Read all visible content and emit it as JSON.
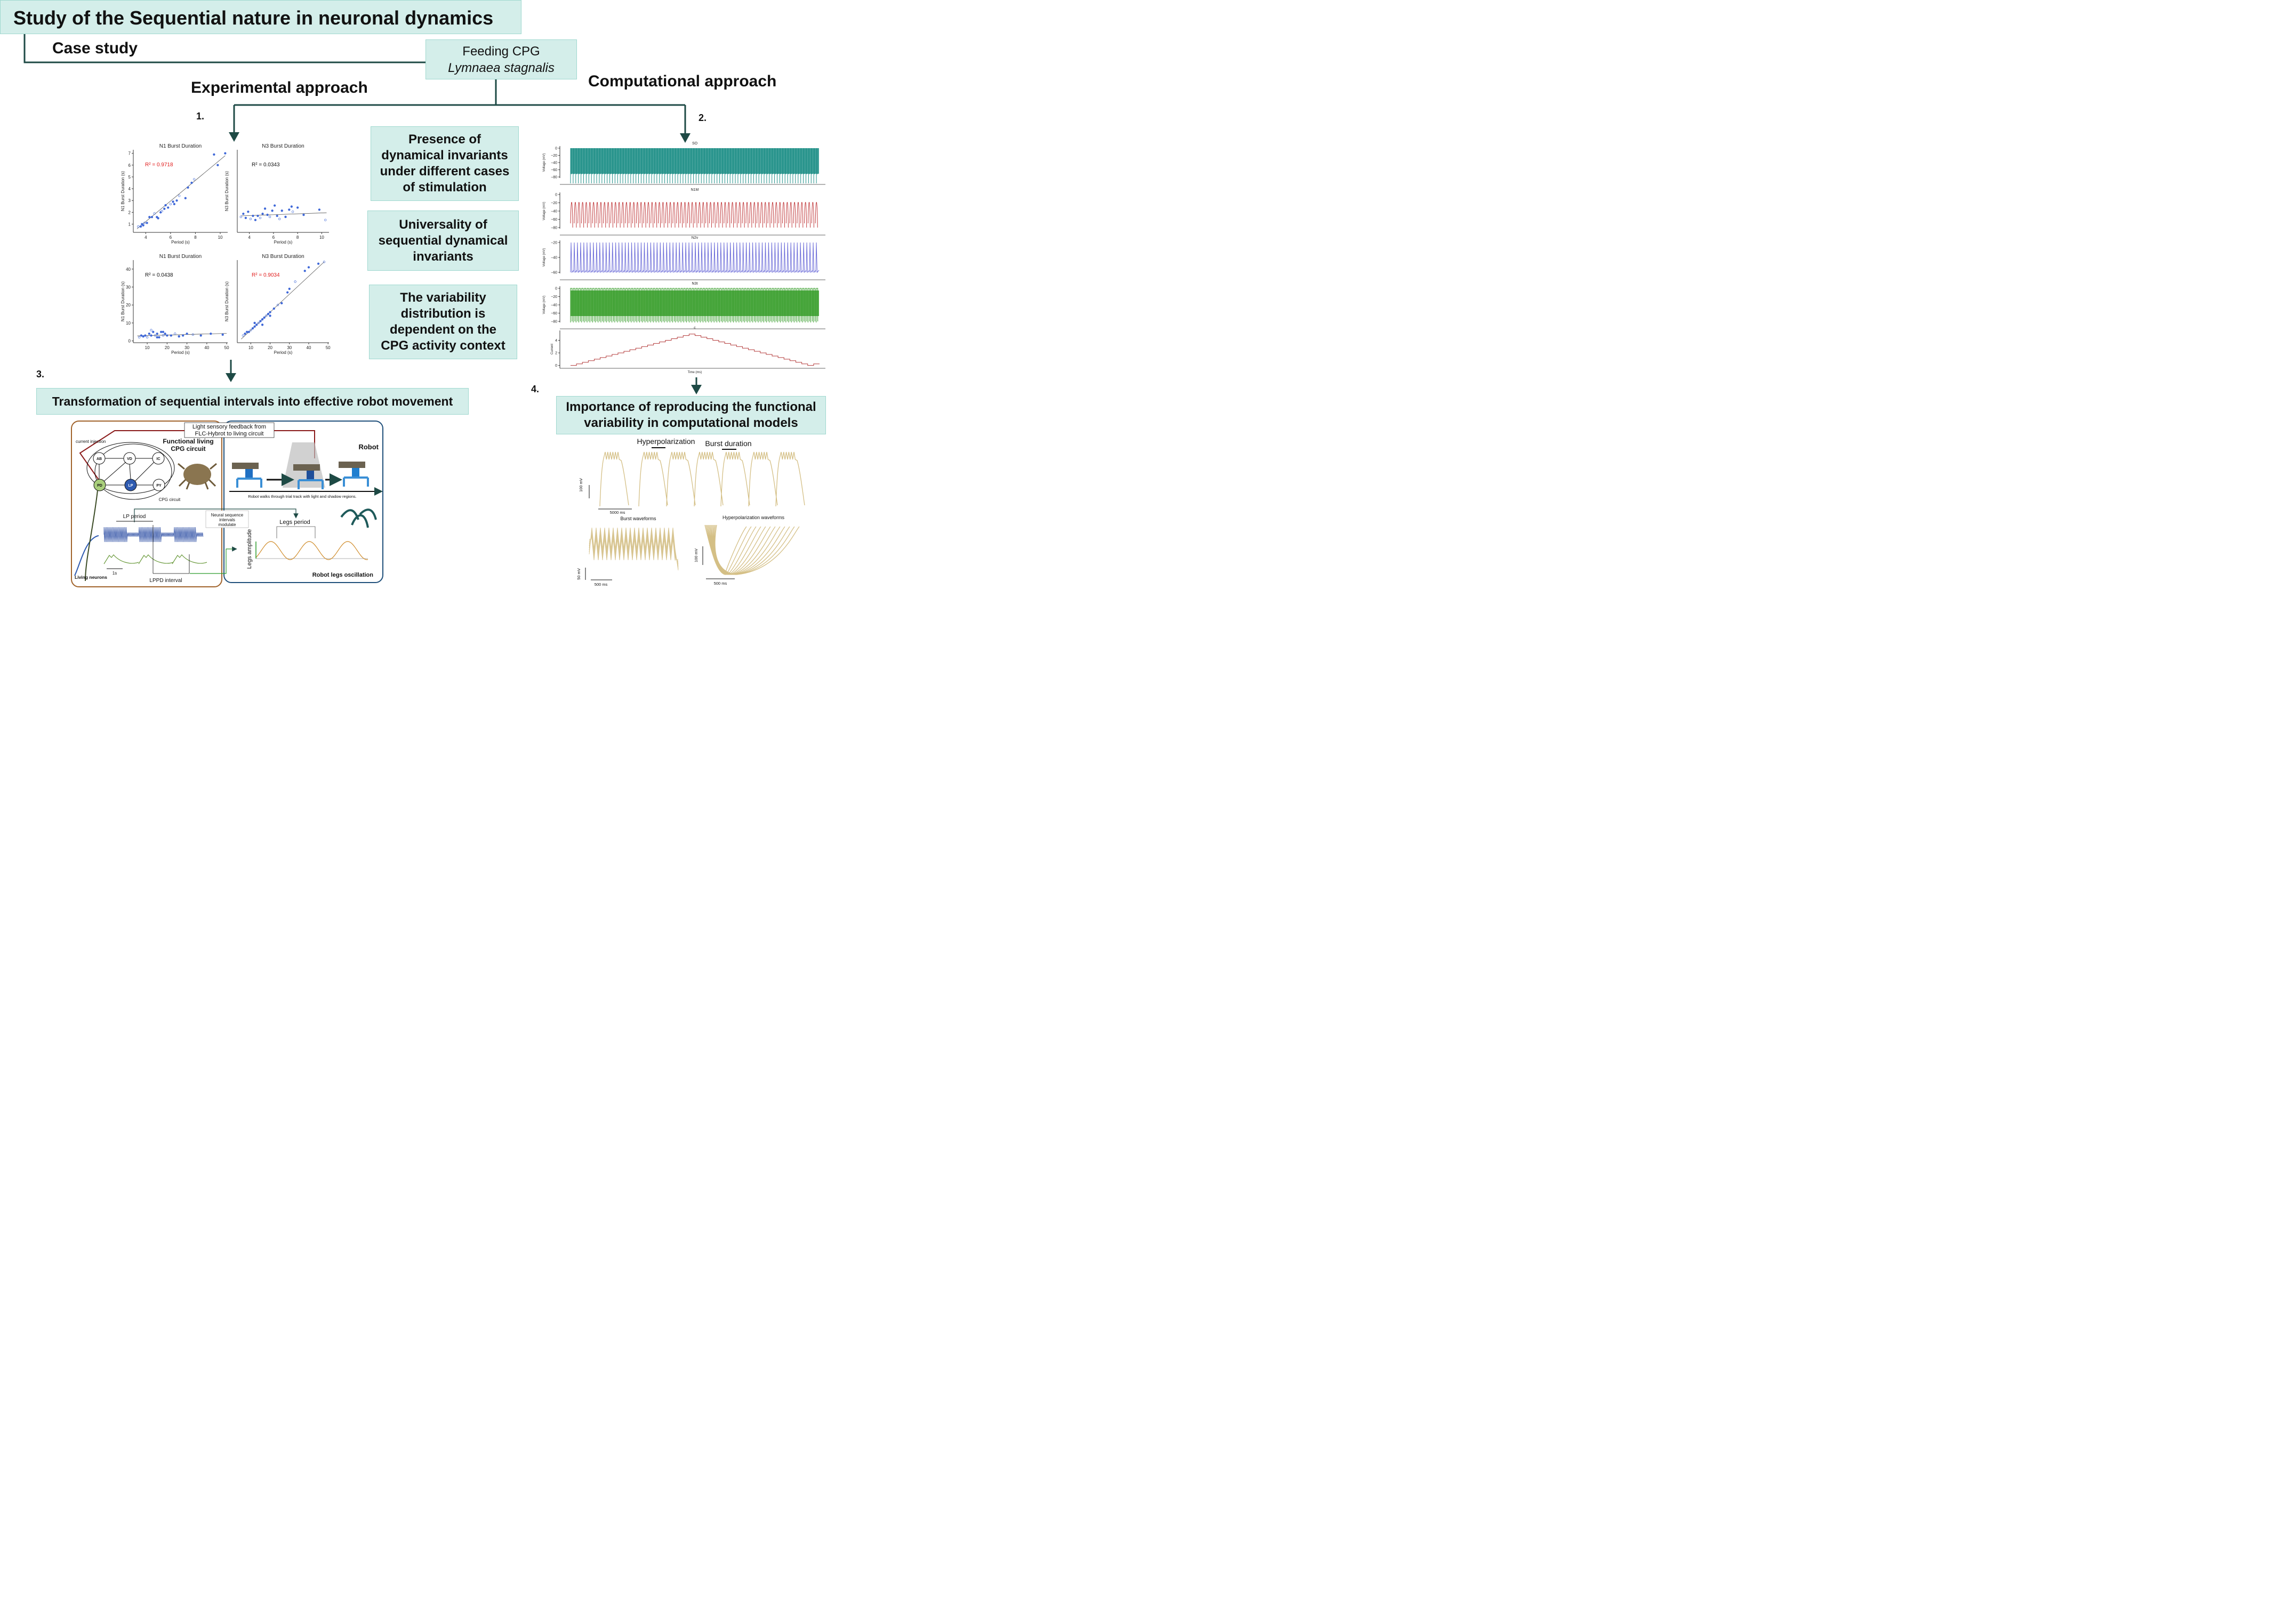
{
  "title": "Study of the Sequential nature in neuronal dynamics",
  "case_study": "Case study",
  "feeding_box": {
    "line1": "Feeding CPG",
    "line2": "Lymnaea stagnalis"
  },
  "experimental_header": "Experimental approach",
  "computational_header": "Computational approach",
  "steps": {
    "s1": "1.",
    "s2": "2.",
    "s3": "3.",
    "s4": "4."
  },
  "middle_boxes": [
    {
      "text": "Presence of dynamical invariants under different cases of stimulation"
    },
    {
      "text": "Universality of sequential dynamical invariants"
    },
    {
      "text": "The variability distribution is dependent on the CPG activity context"
    }
  ],
  "step3_box": "Transformation of sequential intervals into effective robot movement",
  "step4_box": "Importance of reproducing the  functional variability in computational models",
  "chart_data": [
    {
      "type": "scatter",
      "title": "N1 Burst Duration",
      "xlabel": "Period (s)",
      "ylabel": "N1 Burst Duration (s)",
      "annotation": "R² = 0.9718",
      "annotation_color": "#e11d1d",
      "xlim": [
        3,
        10.6
      ],
      "ylim": [
        0.3,
        7.3
      ],
      "xticks": [
        4,
        6,
        8,
        10
      ],
      "yticks": [
        1,
        2,
        3,
        4,
        5,
        6,
        7
      ],
      "points": [
        [
          3.4,
          0.8
        ],
        [
          3.6,
          0.8
        ],
        [
          3.7,
          1
        ],
        [
          3.8,
          0.9
        ],
        [
          3.9,
          1.1
        ],
        [
          4.1,
          1.1
        ],
        [
          4.3,
          1.6
        ],
        [
          4.5,
          1.6
        ],
        [
          4.7,
          1.9
        ],
        [
          4.9,
          1.6
        ],
        [
          5,
          1.5
        ],
        [
          5.2,
          2
        ],
        [
          5.3,
          2.1
        ],
        [
          5.5,
          2.3
        ],
        [
          5.6,
          2.6
        ],
        [
          5.8,
          2.4
        ],
        [
          6,
          2.7
        ],
        [
          6.2,
          2.9
        ],
        [
          6.3,
          2.7
        ],
        [
          6.5,
          3
        ],
        [
          6.7,
          3.4
        ],
        [
          7.2,
          3.2
        ],
        [
          7.4,
          4.1
        ],
        [
          7.7,
          4.5
        ],
        [
          7.9,
          4.8
        ],
        [
          9.5,
          6.9
        ],
        [
          9.8,
          6
        ],
        [
          10.4,
          7
        ]
      ],
      "fit": [
        [
          3.3,
          0.6
        ],
        [
          10.4,
          6.8
        ]
      ]
    },
    {
      "type": "scatter",
      "title": "N3 Burst Duration",
      "xlabel": "Period (s)",
      "ylabel": "N3 Burst Duration (s)",
      "annotation": "R² = 0.0343",
      "annotation_color": "#111111",
      "xlim": [
        3,
        10.6
      ],
      "ylim": [
        0,
        8
      ],
      "xticks": [
        4,
        6,
        8,
        10
      ],
      "yticks": [],
      "points": [
        [
          3.3,
          1.5
        ],
        [
          3.5,
          1.8
        ],
        [
          3.7,
          1.4
        ],
        [
          3.9,
          2
        ],
        [
          4.1,
          1.3
        ],
        [
          4.3,
          1.6
        ],
        [
          4.5,
          1.2
        ],
        [
          4.7,
          1.6
        ],
        [
          4.9,
          1.4
        ],
        [
          5.1,
          1.8
        ],
        [
          5.3,
          2.3
        ],
        [
          5.5,
          1.7
        ],
        [
          5.7,
          1.5
        ],
        [
          5.9,
          2.1
        ],
        [
          6.1,
          2.6
        ],
        [
          6.3,
          1.6
        ],
        [
          6.5,
          1.3
        ],
        [
          6.7,
          2.1
        ],
        [
          7,
          1.5
        ],
        [
          7.3,
          2.2
        ],
        [
          7.6,
          2
        ],
        [
          8,
          2.4
        ],
        [
          8.5,
          1.7
        ],
        [
          9.8,
          2.2
        ],
        [
          10.3,
          1.2
        ],
        [
          7.5,
          2.5
        ]
      ],
      "fit": [
        [
          3.3,
          1.6
        ],
        [
          10.4,
          1.9
        ]
      ]
    },
    {
      "type": "scatter",
      "title": "N1 Burst Duration",
      "xlabel": "Period (s)",
      "ylabel": "N1 Burst Duration (s)",
      "annotation": "R² = 0.0438",
      "annotation_color": "#111111",
      "xlim": [
        3,
        50.5
      ],
      "ylim": [
        -1,
        45
      ],
      "xticks": [
        10,
        20,
        30,
        40,
        50
      ],
      "yticks": [
        0,
        10,
        20,
        30,
        40
      ],
      "points": [
        [
          6,
          2
        ],
        [
          7,
          3
        ],
        [
          8,
          2.5
        ],
        [
          9,
          3
        ],
        [
          10,
          2
        ],
        [
          11,
          4
        ],
        [
          12,
          3
        ],
        [
          13,
          5
        ],
        [
          14,
          3
        ],
        [
          15,
          4
        ],
        [
          16,
          2
        ],
        [
          17,
          5
        ],
        [
          18,
          3
        ],
        [
          19,
          4
        ],
        [
          20,
          3
        ],
        [
          22,
          3
        ],
        [
          24,
          4
        ],
        [
          26,
          2.5
        ],
        [
          28,
          3
        ],
        [
          30,
          4
        ],
        [
          33,
          3.5
        ],
        [
          37,
          3
        ],
        [
          42,
          4
        ],
        [
          48,
          3.5
        ],
        [
          12,
          6
        ],
        [
          15,
          2
        ],
        [
          18,
          5
        ]
      ],
      "fit": [
        [
          5,
          2.8
        ],
        [
          50,
          4.2
        ]
      ]
    },
    {
      "type": "scatter",
      "title": "N3 Burst Duration",
      "xlabel": "Period (s)",
      "ylabel": "N3 Burst Duration (s)",
      "annotation": "R² = 0.9034",
      "annotation_color": "#e11d1d",
      "xlim": [
        3,
        50.5
      ],
      "ylim": [
        -1,
        45
      ],
      "xticks": [
        10,
        20,
        30,
        40,
        50
      ],
      "yticks": [],
      "points": [
        [
          6,
          3
        ],
        [
          7,
          4
        ],
        [
          8,
          5
        ],
        [
          9,
          5
        ],
        [
          10,
          6
        ],
        [
          11,
          7
        ],
        [
          12,
          8
        ],
        [
          13,
          9
        ],
        [
          14,
          10
        ],
        [
          15,
          11
        ],
        [
          16,
          12
        ],
        [
          17,
          13
        ],
        [
          18,
          14
        ],
        [
          19,
          15
        ],
        [
          20,
          16
        ],
        [
          22,
          18
        ],
        [
          24,
          20
        ],
        [
          26,
          21
        ],
        [
          29,
          27
        ],
        [
          30,
          29
        ],
        [
          33,
          33
        ],
        [
          38,
          39
        ],
        [
          40,
          41
        ],
        [
          45,
          43
        ],
        [
          48,
          44
        ],
        [
          12,
          10
        ],
        [
          16,
          9
        ],
        [
          20,
          14
        ]
      ],
      "fit": [
        [
          5,
          1
        ],
        [
          48,
          44
        ]
      ]
    },
    {
      "type": "line",
      "title": "c",
      "xlabel": "Time (ms)",
      "ylabel": "Current",
      "yticks": [
        0,
        2,
        4
      ],
      "ylim": [
        -0.2,
        5.4
      ],
      "steps": [
        0,
        0.25,
        0.5,
        0.75,
        1,
        1.25,
        1.5,
        1.75,
        2,
        2.25,
        2.5,
        2.75,
        3,
        3.25,
        3.5,
        3.75,
        4,
        4.25,
        4.5,
        4.75,
        5,
        4.75,
        4.5,
        4.25,
        4,
        3.75,
        3.5,
        3.25,
        3,
        2.75,
        2.5,
        2.25,
        2,
        1.75,
        1.5,
        1.25,
        1,
        0.75,
        0.5,
        0.25,
        0,
        0.25
      ]
    }
  ],
  "traces": [
    {
      "title": "SO",
      "ylabel": "Voltage (mV)",
      "yticks": [
        "0",
        "−20",
        "−40",
        "−60",
        "−80"
      ],
      "color": "#1e8f87"
    },
    {
      "title": "N1M",
      "ylabel": "Voltage (mV)",
      "yticks": [
        "0",
        "−20",
        "−40",
        "−60",
        "−80"
      ],
      "color": "#c0393b"
    },
    {
      "title": "N2v",
      "ylabel": "Voltage (mV)",
      "yticks": [
        "−20",
        "−40",
        "−60"
      ],
      "color": "#6a6ad8"
    },
    {
      "title": "N3t",
      "ylabel": "Voltage (mV)",
      "yticks": [
        "0",
        "−20",
        "−40",
        "−60",
        "−80"
      ],
      "color": "#2f9a22"
    }
  ],
  "robot_panel": {
    "feedback_label": "Light sensory feedback from FLC-Hybrot to living circuit",
    "current_injection": "current injection",
    "functional_circuit": "Functional living CPG circuit",
    "cpg_circuit": "CPG circuit",
    "robot": "Robot",
    "robot_caption": "Robot walks through trial track with light and shadow regions.",
    "neural_seq": "Neural sequence intervals modulate",
    "lp_period": "LP period",
    "legs_period": "Legs period",
    "legs_amplitude": "Legs amplitude",
    "scale_1s": "1s",
    "living_neurons": "Living neurons",
    "lppd_interval": "LPPD interval",
    "robot_legs": "Robot legs oscillation",
    "nodes": [
      "AB",
      "VD",
      "IC",
      "PD",
      "LP",
      "PY"
    ],
    "node_sub": {
      "PD": "(2)",
      "PY": "(8)"
    }
  },
  "model_panel": {
    "hyperpolarization": "Hyperpolarization",
    "burst_duration": "Burst duration",
    "scale_100mv": "100 mV",
    "scale_5000ms": "5000 ms",
    "burst_waveforms": "Burst waveforms",
    "hyper_waveforms": "Hyperpolarization waveforms",
    "scale_50mv": "50 mV",
    "scale_500ms_a": "500 ms",
    "scale_500ms_b": "500 ms",
    "scale_100mv_b": "100 mV",
    "trace_color": "#d4bf85"
  },
  "colors": {
    "box_fill": "#d4eeea",
    "arrow": "#1e4a45",
    "brown": "#a0622a",
    "navy": "#1f4f7a",
    "scatter": "#3f68d8"
  }
}
